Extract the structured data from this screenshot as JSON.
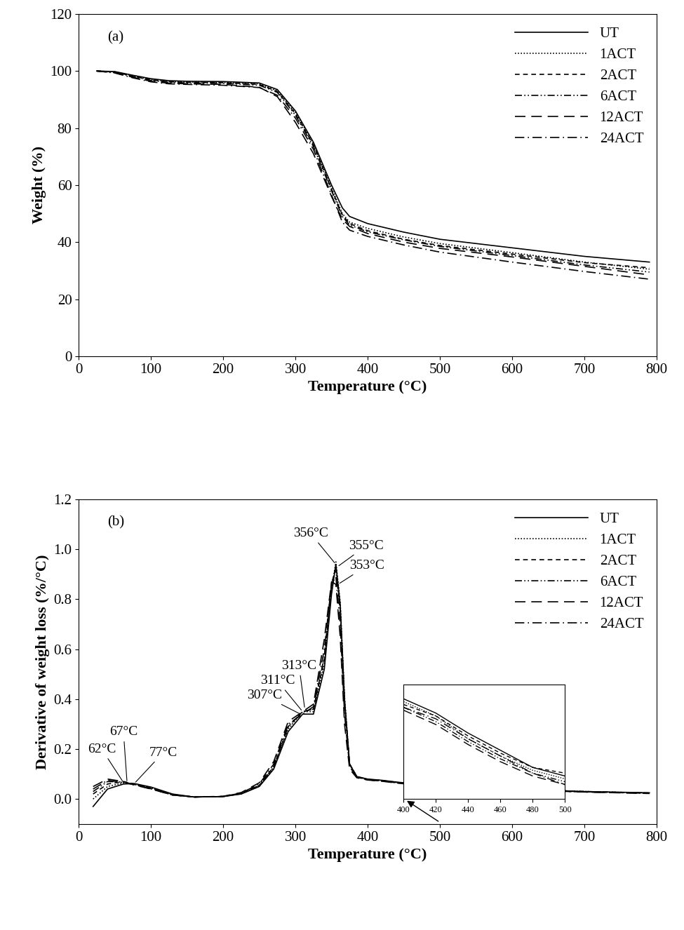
{
  "chart_data": [
    {
      "type": "line",
      "title": "(a)",
      "x_label": "Temperature (°C)",
      "y_label": "Weight (%)",
      "x": [
        25,
        50,
        75,
        100,
        125,
        150,
        200,
        250,
        275,
        300,
        325,
        350,
        365,
        375,
        400,
        450,
        500,
        600,
        700,
        790
      ],
      "xlim": [
        0,
        800
      ],
      "xticks": [
        0,
        100,
        200,
        300,
        400,
        500,
        600,
        700,
        800
      ],
      "ylim": [
        0,
        120
      ],
      "yticks": [
        0,
        20,
        40,
        60,
        80,
        100,
        120
      ],
      "legend": "upper right",
      "series": [
        {
          "name": "UT",
          "color": "#000000",
          "line_style": "solid",
          "values": [
            100,
            99.8,
            98.5,
            97.3,
            96.6,
            96.4,
            96.3,
            95.8,
            93.5,
            86,
            75,
            60,
            52,
            49,
            46.5,
            43.5,
            41,
            38,
            35,
            33
          ]
        },
        {
          "name": "1ACT",
          "color": "#000000",
          "line_style": "dotted",
          "values": [
            100,
            99.7,
            98.3,
            97,
            96.3,
            96.1,
            96,
            95.5,
            93,
            85.5,
            74.5,
            59,
            50,
            47,
            44.8,
            41.8,
            39.5,
            36.3,
            33,
            30.5
          ]
        },
        {
          "name": "2ACT",
          "color": "#000000",
          "line_style": "dashed",
          "values": [
            100,
            99.6,
            98.2,
            96.9,
            96.2,
            96,
            95.9,
            95.3,
            92.8,
            85,
            74,
            58.5,
            49.5,
            46.5,
            44,
            41,
            38.8,
            35.8,
            32.8,
            31
          ]
        },
        {
          "name": "6ACT",
          "color": "#000000",
          "line_style": "dashdotdot",
          "values": [
            100,
            99.5,
            98,
            96.7,
            96,
            95.8,
            95.7,
            95,
            92.5,
            84.5,
            73.5,
            58,
            49,
            46,
            43.6,
            40.8,
            38.5,
            35.3,
            32,
            29.5
          ]
        },
        {
          "name": "12ACT",
          "color": "#000000",
          "line_style": "long_dash",
          "values": [
            100,
            99.4,
            97.8,
            96.4,
            95.7,
            95.5,
            95.3,
            94.3,
            91,
            82,
            71,
            56,
            48,
            45.5,
            43,
            40,
            37.8,
            34.8,
            31.5,
            28.5
          ]
        },
        {
          "name": "24ACT",
          "color": "#000000",
          "line_style": "dashdot",
          "values": [
            100,
            99.3,
            97.6,
            96.2,
            95.5,
            95.3,
            95,
            94.2,
            91.5,
            83.5,
            72.5,
            56.5,
            47,
            44.2,
            42,
            39,
            36.5,
            33,
            29.7,
            27
          ]
        }
      ]
    },
    {
      "type": "line",
      "title": "(b)",
      "x_label": "Temperature (°C)",
      "y_label": "Derivative of weight loss (%/°C)",
      "x": [
        20,
        40,
        62,
        77,
        100,
        130,
        160,
        200,
        225,
        250,
        270,
        290,
        310,
        325,
        340,
        350,
        356,
        362,
        368,
        375,
        385,
        400,
        420,
        440,
        460,
        480,
        500,
        600,
        700,
        790
      ],
      "xlim": [
        0,
        800
      ],
      "xticks": [
        0,
        100,
        200,
        300,
        400,
        500,
        600,
        700,
        800
      ],
      "ylim": [
        -0.1,
        1.2
      ],
      "yticks": [
        {
          "value": 0,
          "label": "0.0"
        },
        {
          "value": 0.2,
          "label": "0.2"
        },
        {
          "value": 0.4,
          "label": "0.4"
        },
        {
          "value": 0.6,
          "label": "0.6"
        },
        {
          "value": 0.8,
          "label": "0.8"
        },
        {
          "value": 1,
          "label": "1.0"
        },
        {
          "value": 1.2,
          "label": "1.2"
        }
      ],
      "legend": "upper right",
      "annotations": [
        {
          "text": "356°C",
          "x": 356,
          "y": 0.94
        },
        {
          "text": "355°C",
          "x": 358,
          "y": 0.93
        },
        {
          "text": "353°C",
          "x": 359,
          "y": 0.86
        },
        {
          "text": "313°C",
          "x": 313,
          "y": 0.36
        },
        {
          "text": "311°C",
          "x": 310,
          "y": 0.35
        },
        {
          "text": "307°C",
          "x": 307,
          "y": 0.34
        },
        {
          "text": "62°C",
          "x": 62,
          "y": 0.066
        },
        {
          "text": "67°C",
          "x": 67,
          "y": 0.065
        },
        {
          "text": "77°C",
          "x": 77,
          "y": 0.062
        }
      ],
      "series": [
        {
          "name": "UT",
          "color": "#000000",
          "line_style": "solid",
          "values": [
            -0.03,
            0.04,
            0.06,
            0.062,
            0.048,
            0.02,
            0.008,
            0.01,
            0.02,
            0.05,
            0.12,
            0.27,
            0.34,
            0.34,
            0.52,
            0.82,
            0.94,
            0.78,
            0.4,
            0.14,
            0.09,
            0.08,
            0.075,
            0.068,
            0.062,
            0.056,
            0.053,
            0.04,
            0.03,
            0.025
          ]
        },
        {
          "name": "1ACT",
          "color": "#000000",
          "line_style": "dotted",
          "values": [
            0.0,
            0.05,
            0.065,
            0.06,
            0.045,
            0.018,
            0.008,
            0.01,
            0.021,
            0.052,
            0.125,
            0.28,
            0.35,
            0.35,
            0.54,
            0.84,
            0.95,
            0.79,
            0.41,
            0.14,
            0.09,
            0.079,
            0.074,
            0.066,
            0.06,
            0.055,
            0.052,
            0.039,
            0.03,
            0.024
          ]
        },
        {
          "name": "2ACT",
          "color": "#000000",
          "line_style": "dashed",
          "values": [
            0.02,
            0.06,
            0.07,
            0.06,
            0.044,
            0.017,
            0.008,
            0.01,
            0.022,
            0.054,
            0.13,
            0.29,
            0.35,
            0.36,
            0.56,
            0.86,
            0.93,
            0.76,
            0.39,
            0.14,
            0.09,
            0.078,
            0.074,
            0.067,
            0.061,
            0.056,
            0.054,
            0.04,
            0.03,
            0.024
          ]
        },
        {
          "name": "6ACT",
          "color": "#000000",
          "line_style": "dashdotdot",
          "values": [
            0.03,
            0.07,
            0.068,
            0.058,
            0.042,
            0.016,
            0.008,
            0.01,
            0.022,
            0.055,
            0.13,
            0.29,
            0.35,
            0.36,
            0.57,
            0.86,
            0.92,
            0.75,
            0.39,
            0.14,
            0.088,
            0.077,
            0.072,
            0.065,
            0.059,
            0.054,
            0.051,
            0.038,
            0.029,
            0.023
          ]
        },
        {
          "name": "12ACT",
          "color": "#000000",
          "line_style": "long_dash",
          "values": [
            0.05,
            0.08,
            0.07,
            0.056,
            0.04,
            0.016,
            0.008,
            0.011,
            0.026,
            0.065,
            0.15,
            0.31,
            0.35,
            0.38,
            0.64,
            0.87,
            0.86,
            0.65,
            0.3,
            0.12,
            0.085,
            0.076,
            0.071,
            0.064,
            0.058,
            0.053,
            0.05,
            0.037,
            0.028,
            0.022
          ]
        },
        {
          "name": "24ACT",
          "color": "#000000",
          "line_style": "dashdot",
          "values": [
            0.04,
            0.075,
            0.066,
            0.057,
            0.041,
            0.016,
            0.008,
            0.01,
            0.024,
            0.06,
            0.14,
            0.3,
            0.34,
            0.37,
            0.6,
            0.86,
            0.89,
            0.7,
            0.34,
            0.13,
            0.087,
            0.077,
            0.073,
            0.066,
            0.06,
            0.054,
            0.05,
            0.038,
            0.028,
            0.023
          ]
        }
      ]
    },
    {
      "type": "line",
      "tick_labels": "x",
      "x": [
        400,
        420,
        440,
        460,
        480,
        500
      ],
      "xlim": [
        400,
        500
      ],
      "xticks": [
        400,
        420,
        440,
        460,
        480,
        500
      ],
      "ylim": [
        0.045,
        0.085
      ],
      "series": [
        {
          "color": "#000000",
          "line_style": "solid",
          "values": [
            0.08,
            0.075,
            0.068,
            0.062,
            0.056,
            0.053
          ]
        },
        {
          "color": "#000000",
          "line_style": "dotted",
          "values": [
            0.079,
            0.074,
            0.066,
            0.06,
            0.055,
            0.052
          ]
        },
        {
          "color": "#000000",
          "line_style": "dashed",
          "values": [
            0.078,
            0.074,
            0.067,
            0.061,
            0.056,
            0.054
          ]
        },
        {
          "color": "#000000",
          "line_style": "dashdotdot",
          "values": [
            0.077,
            0.072,
            0.065,
            0.059,
            0.054,
            0.051
          ]
        },
        {
          "color": "#000000",
          "line_style": "long_dash",
          "values": [
            0.076,
            0.071,
            0.064,
            0.058,
            0.053,
            0.05
          ]
        },
        {
          "color": "#000000",
          "line_style": "dashdot",
          "values": [
            0.077,
            0.073,
            0.066,
            0.06,
            0.054,
            0.05
          ]
        }
      ]
    }
  ]
}
